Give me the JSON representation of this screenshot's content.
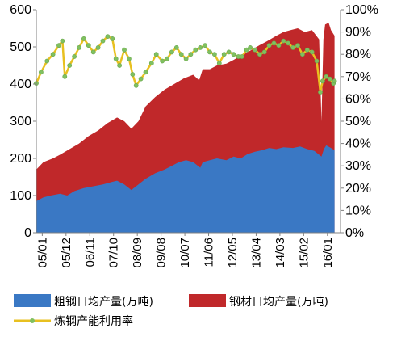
{
  "chart_data": {
    "type": "area",
    "y_left": {
      "ticks": [
        "0",
        "100",
        "200",
        "300",
        "400",
        "500",
        "600"
      ],
      "ylim": [
        0,
        600
      ]
    },
    "y_right": {
      "ticks": [
        "0%",
        "10%",
        "20%",
        "30%",
        "40%",
        "50%",
        "60%",
        "70%",
        "80%",
        "90%",
        "100%"
      ],
      "ylim": [
        0,
        1
      ]
    },
    "x_categories": [
      "05/01",
      "05/12",
      "06/11",
      "07/10",
      "08/09",
      "09/08",
      "10/07",
      "11/06",
      "12/05",
      "13/04",
      "14/03",
      "15/02",
      "16/01"
    ],
    "x_range": [
      0,
      12.8
    ],
    "grid": false,
    "legend_position": "bottom",
    "series": [
      {
        "name": "粗钢日均产量(万吨)",
        "type": "area",
        "axis": "left",
        "color": "#3a78c4",
        "points": [
          [
            0,
            85
          ],
          [
            0.3,
            95
          ],
          [
            0.6,
            100
          ],
          [
            1,
            105
          ],
          [
            1.3,
            100
          ],
          [
            1.6,
            112
          ],
          [
            2,
            120
          ],
          [
            2.4,
            125
          ],
          [
            2.8,
            130
          ],
          [
            3.2,
            137
          ],
          [
            3.4,
            140
          ],
          [
            3.7,
            130
          ],
          [
            4,
            115
          ],
          [
            4.2,
            125
          ],
          [
            4.6,
            145
          ],
          [
            5,
            160
          ],
          [
            5.4,
            170
          ],
          [
            5.7,
            180
          ],
          [
            6,
            190
          ],
          [
            6.3,
            195
          ],
          [
            6.6,
            190
          ],
          [
            6.9,
            175
          ],
          [
            7,
            190
          ],
          [
            7.3,
            195
          ],
          [
            7.6,
            200
          ],
          [
            8,
            195
          ],
          [
            8.3,
            205
          ],
          [
            8.6,
            200
          ],
          [
            8.9,
            212
          ],
          [
            9.2,
            218
          ],
          [
            9.5,
            222
          ],
          [
            9.8,
            228
          ],
          [
            10.1,
            225
          ],
          [
            10.4,
            230
          ],
          [
            10.8,
            228
          ],
          [
            11.1,
            232
          ],
          [
            11.4,
            225
          ],
          [
            11.7,
            220
          ],
          [
            12,
            205
          ],
          [
            12.1,
            225
          ],
          [
            12.2,
            235
          ],
          [
            12.4,
            228
          ],
          [
            12.55,
            222
          ]
        ]
      },
      {
        "name": "钢材日均产量(万吨)",
        "type": "area",
        "axis": "left",
        "color": "#c0282a",
        "points": [
          [
            0,
            170
          ],
          [
            0.3,
            190
          ],
          [
            0.7,
            200
          ],
          [
            1,
            210
          ],
          [
            1.4,
            225
          ],
          [
            1.8,
            240
          ],
          [
            2.2,
            260
          ],
          [
            2.6,
            275
          ],
          [
            3,
            295
          ],
          [
            3.4,
            310
          ],
          [
            3.7,
            300
          ],
          [
            4,
            280
          ],
          [
            4.3,
            300
          ],
          [
            4.6,
            340
          ],
          [
            5,
            365
          ],
          [
            5.4,
            385
          ],
          [
            5.8,
            400
          ],
          [
            6.2,
            415
          ],
          [
            6.6,
            425
          ],
          [
            6.85,
            410
          ],
          [
            7,
            440
          ],
          [
            7.3,
            440
          ],
          [
            7.6,
            450
          ],
          [
            8,
            455
          ],
          [
            8.3,
            465
          ],
          [
            8.7,
            480
          ],
          [
            9,
            490
          ],
          [
            9.4,
            505
          ],
          [
            9.7,
            515
          ],
          [
            10.1,
            530
          ],
          [
            10.4,
            540
          ],
          [
            10.7,
            545
          ],
          [
            11,
            550
          ],
          [
            11.3,
            540
          ],
          [
            11.6,
            545
          ],
          [
            11.9,
            520
          ],
          [
            12,
            300
          ],
          [
            12.08,
            520
          ],
          [
            12.15,
            560
          ],
          [
            12.3,
            565
          ],
          [
            12.4,
            545
          ],
          [
            12.55,
            530
          ]
        ]
      },
      {
        "name": "炼钢产能利用率",
        "type": "line",
        "axis": "right",
        "color": "#e8c020",
        "marker_color": "#80c060",
        "points": [
          [
            0,
            0.67
          ],
          [
            0.2,
            0.72
          ],
          [
            0.45,
            0.77
          ],
          [
            0.7,
            0.8
          ],
          [
            0.95,
            0.84
          ],
          [
            1.1,
            0.86
          ],
          [
            1.2,
            0.7
          ],
          [
            1.4,
            0.75
          ],
          [
            1.6,
            0.79
          ],
          [
            1.8,
            0.83
          ],
          [
            2.0,
            0.87
          ],
          [
            2.2,
            0.84
          ],
          [
            2.4,
            0.81
          ],
          [
            2.6,
            0.83
          ],
          [
            2.8,
            0.86
          ],
          [
            3.0,
            0.88
          ],
          [
            3.2,
            0.87
          ],
          [
            3.35,
            0.78
          ],
          [
            3.5,
            0.75
          ],
          [
            3.7,
            0.82
          ],
          [
            3.9,
            0.78
          ],
          [
            4.05,
            0.71
          ],
          [
            4.2,
            0.66
          ],
          [
            4.4,
            0.69
          ],
          [
            4.6,
            0.72
          ],
          [
            4.85,
            0.76
          ],
          [
            5.05,
            0.8
          ],
          [
            5.3,
            0.77
          ],
          [
            5.5,
            0.78
          ],
          [
            5.7,
            0.81
          ],
          [
            5.9,
            0.83
          ],
          [
            6.1,
            0.8
          ],
          [
            6.3,
            0.78
          ],
          [
            6.5,
            0.8
          ],
          [
            6.7,
            0.82
          ],
          [
            6.9,
            0.83
          ],
          [
            7.1,
            0.84
          ],
          [
            7.3,
            0.81
          ],
          [
            7.5,
            0.8
          ],
          [
            7.7,
            0.76
          ],
          [
            7.9,
            0.8
          ],
          [
            8.1,
            0.81
          ],
          [
            8.3,
            0.8
          ],
          [
            8.5,
            0.79
          ],
          [
            8.65,
            0.79
          ],
          [
            8.85,
            0.82
          ],
          [
            9.0,
            0.83
          ],
          [
            9.2,
            0.82
          ],
          [
            9.4,
            0.8
          ],
          [
            9.6,
            0.81
          ],
          [
            9.8,
            0.84
          ],
          [
            10.0,
            0.85
          ],
          [
            10.2,
            0.84
          ],
          [
            10.4,
            0.86
          ],
          [
            10.6,
            0.85
          ],
          [
            10.8,
            0.83
          ],
          [
            11.0,
            0.84
          ],
          [
            11.2,
            0.8
          ],
          [
            11.4,
            0.82
          ],
          [
            11.6,
            0.81
          ],
          [
            11.8,
            0.77
          ],
          [
            11.95,
            0.63
          ],
          [
            12.05,
            0.68
          ],
          [
            12.2,
            0.7
          ],
          [
            12.35,
            0.69
          ],
          [
            12.5,
            0.67
          ],
          [
            12.55,
            0.68
          ]
        ]
      }
    ]
  }
}
